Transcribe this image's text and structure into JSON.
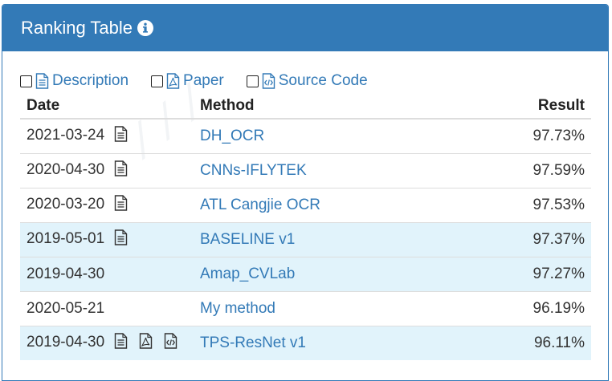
{
  "panel": {
    "title": "Ranking Table"
  },
  "filters": [
    {
      "label": "Description",
      "icon": "document-icon"
    },
    {
      "label": "Paper",
      "icon": "pdf-icon"
    },
    {
      "label": "Source Code",
      "icon": "code-file-icon"
    }
  ],
  "table": {
    "headers": {
      "date": "Date",
      "method": "Method",
      "result": "Result"
    },
    "rows": [
      {
        "date": "2021-03-24",
        "icons": [
          "doc"
        ],
        "method": "DH_OCR",
        "result": "97.73%",
        "highlight": false
      },
      {
        "date": "2020-04-30",
        "icons": [
          "doc"
        ],
        "method": "CNNs-IFLYTEK",
        "result": "97.59%",
        "highlight": false
      },
      {
        "date": "2020-03-20",
        "icons": [
          "doc"
        ],
        "method": "ATL Cangjie OCR",
        "result": "97.53%",
        "highlight": false
      },
      {
        "date": "2019-05-01",
        "icons": [
          "doc"
        ],
        "method": "BASELINE v1",
        "result": "97.37%",
        "highlight": true
      },
      {
        "date": "2019-04-30",
        "icons": [],
        "method": "Amap_CVLab",
        "result": "97.27%",
        "highlight": true
      },
      {
        "date": "2020-05-21",
        "icons": [],
        "method": "My method",
        "result": "96.19%",
        "highlight": false
      },
      {
        "date": "2019-04-30",
        "icons": [
          "doc",
          "pdf",
          "code"
        ],
        "method": "TPS-ResNet v1",
        "result": "96.11%",
        "highlight": true
      }
    ]
  },
  "colors": {
    "primary": "#337ab7",
    "highlight_row": "#e1f3fb"
  }
}
